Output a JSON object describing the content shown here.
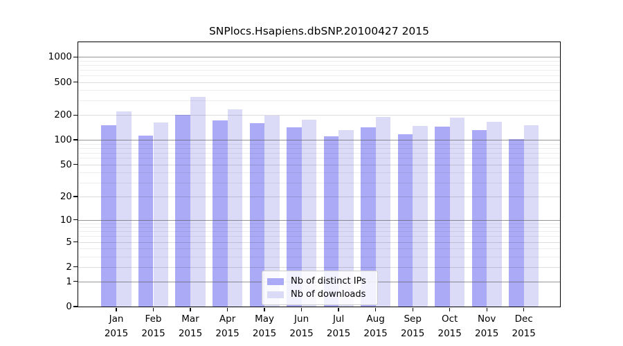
{
  "chart_data": {
    "type": "bar",
    "title": "SNPlocs.Hsapiens.dbSNP.20100427 2015",
    "y_scale": "log10(value+1), pseudo-log axis with 0 baseline",
    "ylim": [
      0,
      1500
    ],
    "grid": "horizontal; light gray minor lines, darker gray at 1/10/100/1000",
    "legend_position": "inside bottom-center",
    "categories": [
      "Jan",
      "Feb",
      "Mar",
      "Apr",
      "May",
      "Jun",
      "Jul",
      "Aug",
      "Sep",
      "Oct",
      "Nov",
      "Dec"
    ],
    "category_year": "2015",
    "y_ticks": [
      0,
      1,
      2,
      5,
      10,
      20,
      50,
      100,
      200,
      500,
      1000
    ],
    "series": [
      {
        "name": "Nb of distinct IPs",
        "color": "#aaaaf6",
        "values": [
          151,
          113,
          202,
          172,
          160,
          143,
          110,
          142,
          118,
          145,
          131,
          103
        ]
      },
      {
        "name": "Nb of downloads",
        "color": "#dbdbf8",
        "values": [
          222,
          164,
          330,
          233,
          198,
          176,
          131,
          188,
          147,
          185,
          167,
          150
        ]
      }
    ]
  },
  "colors": {
    "background": "#ffffff",
    "axis": "#000000",
    "gridline_minor": "rgba(0,0,0,0.07)",
    "gridline_major": "rgba(90,90,90,0.65)",
    "bar_distinct_ips": "#aaaaf6",
    "bar_downloads": "#dbdbf8",
    "legend_border": "#cccccc"
  }
}
